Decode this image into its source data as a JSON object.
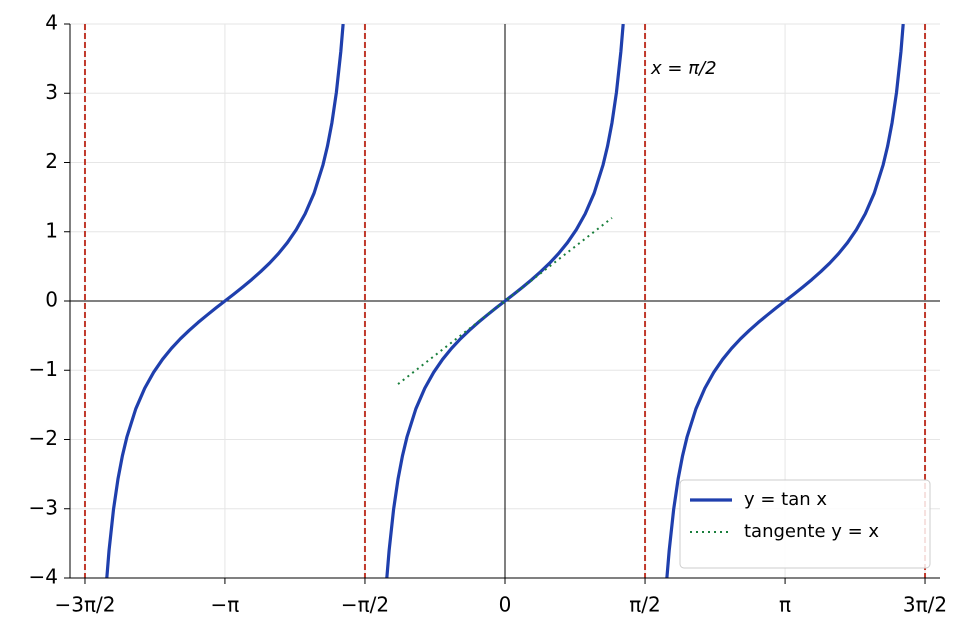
{
  "chart_data": {
    "type": "line",
    "x": [
      -4.467,
      -4.442,
      -4.392,
      -4.342,
      -4.292,
      -4.242,
      -4.142,
      -4.042,
      -3.942,
      -3.842,
      -3.742,
      -3.642,
      -3.542,
      -3.442,
      -3.342,
      -3.242,
      -3.142,
      -3.042,
      -2.942,
      -2.842,
      -2.742,
      -2.642,
      -2.542,
      -2.442,
      -2.342,
      -2.242,
      -2.142,
      -2.042,
      -1.992,
      -1.942,
      -1.892,
      -1.842,
      -1.816,
      null,
      -1.3258,
      -1.3,
      -1.25,
      -1.2,
      -1.15,
      -1.1,
      -1.0,
      -0.9,
      -0.8,
      -0.7,
      -0.6,
      -0.5,
      -0.4,
      -0.3,
      -0.2,
      -0.1,
      0,
      0.1,
      0.2,
      0.3,
      0.4,
      0.5,
      0.6,
      0.7,
      0.8,
      0.9,
      1.0,
      1.1,
      1.15,
      1.2,
      1.25,
      1.3,
      1.3258,
      null,
      1.816,
      1.842,
      1.892,
      1.942,
      1.992,
      2.042,
      2.142,
      2.242,
      2.342,
      2.442,
      2.542,
      2.642,
      2.742,
      2.842,
      2.942,
      3.042,
      3.142,
      3.242,
      3.342,
      3.442,
      3.542,
      3.642,
      3.742,
      3.842,
      3.942,
      4.042,
      4.142,
      4.242,
      4.292,
      4.342,
      4.392,
      4.442,
      4.467
    ],
    "series": [
      {
        "name": "y = tan x",
        "color": "#1f3fad",
        "style": "solid",
        "values": [
          -4,
          -3.602,
          -3.01,
          -2.572,
          -2.234,
          -1.965,
          -1.557,
          -1.26,
          -1.03,
          -0.842,
          -0.684,
          -0.546,
          -0.423,
          -0.309,
          -0.203,
          -0.1,
          0,
          0.1,
          0.203,
          0.309,
          0.423,
          0.546,
          0.684,
          0.842,
          1.03,
          1.26,
          1.557,
          1.965,
          2.234,
          2.572,
          3.01,
          3.602,
          4,
          null,
          -4,
          -3.602,
          -3.01,
          -2.572,
          -2.234,
          -1.965,
          -1.557,
          -1.26,
          -1.03,
          -0.842,
          -0.684,
          -0.546,
          -0.423,
          -0.309,
          -0.203,
          -0.1,
          0,
          0.1,
          0.203,
          0.309,
          0.423,
          0.546,
          0.684,
          0.842,
          1.03,
          1.26,
          1.557,
          1.965,
          2.234,
          2.572,
          3.01,
          3.602,
          4,
          null,
          -4,
          -3.602,
          -3.01,
          -2.572,
          -2.234,
          -1.965,
          -1.557,
          -1.26,
          -1.03,
          -0.842,
          -0.684,
          -0.546,
          -0.423,
          -0.309,
          -0.203,
          -0.1,
          0,
          0.1,
          0.203,
          0.309,
          0.423,
          0.546,
          0.684,
          0.842,
          1.03,
          1.26,
          1.557,
          1.965,
          2.234,
          2.572,
          3.01,
          3.602,
          4
        ]
      },
      {
        "name": "tangente y = x",
        "color": "#1a7f3c",
        "style": "dotted",
        "x": [
          -1.2,
          1.2
        ],
        "values": [
          -1.2,
          1.2
        ]
      }
    ],
    "asymptotes": {
      "x": [
        -4.712,
        -1.571,
        1.571,
        4.712
      ],
      "color": "#c0392b"
    },
    "annotation": "x = π/2",
    "xlim": [
      -4.88,
      4.88
    ],
    "ylim": [
      -4,
      4
    ],
    "xticks": [
      {
        "value": -4.712,
        "label": "−3π/2"
      },
      {
        "value": -3.142,
        "label": "−π"
      },
      {
        "value": -1.571,
        "label": "−π/2"
      },
      0,
      {
        "value": 1.571,
        "label": "π/2"
      },
      {
        "value": 3.142,
        "label": "π"
      },
      {
        "value": 4.712,
        "label": "3π/2"
      }
    ],
    "yticks": [
      {
        "value": -4,
        "label": "−4"
      },
      {
        "value": -3,
        "label": "−3"
      },
      {
        "value": -2,
        "label": "−2"
      },
      {
        "value": -1,
        "label": "−1"
      },
      0,
      1,
      2,
      3,
      4
    ],
    "grid": true,
    "legend": "lower right"
  }
}
